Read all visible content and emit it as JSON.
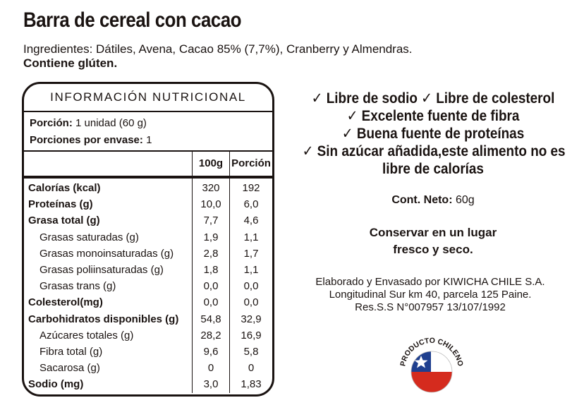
{
  "product": {
    "title": "Barra de cereal con cacao",
    "ingredients": "Ingredientes:  Dátiles, Avena, Cacao 85% (7,7%), Cranberry y Almendras.",
    "allergen": "Contiene glúten."
  },
  "nutrition": {
    "header": "INFORMACIÓN NUTRICIONAL",
    "serving_label": "Porción:",
    "serving_value": " 1 unidad (60 g)",
    "servings_label": "Porciones por envase:",
    "servings_value": " 1",
    "col_100g": "100g",
    "col_portion": "Porción",
    "rows": [
      {
        "label": "Calorías (kcal)",
        "v100": "320",
        "vport": "192",
        "style": "bold"
      },
      {
        "label": "Proteínas (g)",
        "v100": "10,0",
        "vport": "6,0",
        "style": "bold"
      },
      {
        "label": "Grasa total (g)",
        "v100": "7,7",
        "vport": "4,6",
        "style": "bold"
      },
      {
        "label": "Grasas saturadas (g)",
        "v100": "1,9",
        "vport": "1,1",
        "style": "sub"
      },
      {
        "label": "Grasas monoinsaturadas (g)",
        "v100": "2,8",
        "vport": "1,7",
        "style": "sub"
      },
      {
        "label": "Grasas poliinsaturadas (g)",
        "v100": "1,8",
        "vport": "1,1",
        "style": "sub"
      },
      {
        "label": "Grasas trans (g)",
        "v100": "0,0",
        "vport": "0,0",
        "style": "sub"
      },
      {
        "label": "Colesterol(mg)",
        "v100": "0,0",
        "vport": "0,0",
        "style": "bold"
      },
      {
        "label": "Carbohidratos disponibles (g)",
        "v100": "54,8",
        "vport": "32,9",
        "style": "bold"
      },
      {
        "label": "Azúcares totales (g)",
        "v100": "28,2",
        "vport": "16,9",
        "style": "sub"
      },
      {
        "label": "Fibra total (g)",
        "v100": "9,6",
        "vport": "5,8",
        "style": "sub"
      },
      {
        "label": "Sacarosa (g)",
        "v100": "0",
        "vport": "0",
        "style": "sub"
      },
      {
        "label": "Sodio (mg)",
        "v100": "3,0",
        "vport": "1,83",
        "style": "bold"
      }
    ]
  },
  "claims": [
    "✓ Libre de sodio ✓ Libre de colesterol",
    "✓ Excelente fuente de fibra",
    "✓ Buena fuente de proteínas",
    "✓ Sin azúcar añadida,este alimento no es",
    "libre de calorías"
  ],
  "net_weight": {
    "label": "Cont. Neto:",
    "value": " 60g"
  },
  "storage": [
    "Conservar en un lugar",
    "fresco y seco."
  ],
  "manufacturer": [
    "Elaborado y Envasado por KIWICHA CHILE S.A.",
    "Longitudinal Sur km 40, parcela 125 Paine.",
    "Res.S.S N°007957 13/107/1992"
  ],
  "seal": {
    "text": "PRODUCTO CHILENO",
    "colors": {
      "blue": "#1f3f8f",
      "red": "#d52b1e",
      "white": "#ffffff"
    }
  }
}
